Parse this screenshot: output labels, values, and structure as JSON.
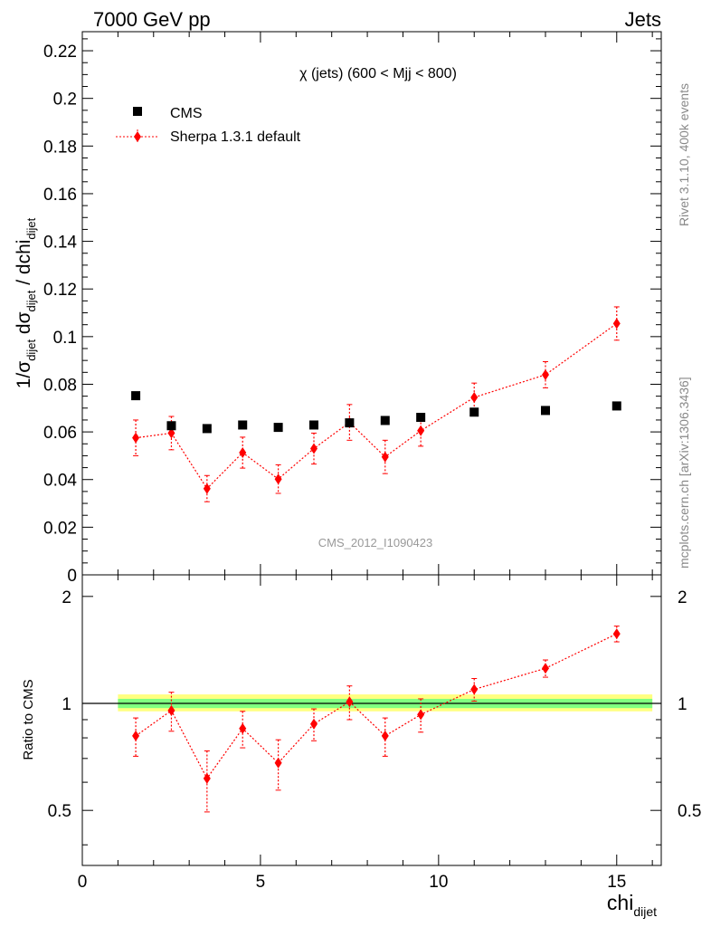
{
  "header": {
    "left": "7000 GeV pp",
    "right": "Jets"
  },
  "side_labels": {
    "top": "Rivet 3.1.10,  400k events",
    "bottom": "mcplots.cern.ch [arXiv:1306.3436]"
  },
  "watermark": "CMS_2012_I1090423",
  "colors": {
    "mc": "#ff0000",
    "data": "#000000",
    "band_outer": "#ffff80",
    "band_inner": "#80ff80"
  },
  "chart_data": [
    {
      "type": "scatter",
      "title": "χ (jets) (600 < Mjj <  800)",
      "ylabel": "1/σdijet dσdijet / dchidijet",
      "xlabel": "chidijet",
      "xlim": [
        0,
        16.25
      ],
      "ylim": [
        0,
        0.228
      ],
      "yticks": [
        "0",
        "0.02",
        "0.04",
        "0.06",
        "0.08",
        "0.1",
        "0.12",
        "0.14",
        "0.16",
        "0.18",
        "0.2",
        "0.22"
      ],
      "legend": [
        "CMS",
        "Sherpa 1.3.1 default"
      ],
      "legend_position": "top-left",
      "series": [
        {
          "name": "CMS",
          "x": [
            1.5,
            2.5,
            3.5,
            4.5,
            5.5,
            6.5,
            7.5,
            8.5,
            9.5,
            11,
            13,
            15
          ],
          "y": [
            0.0752,
            0.0626,
            0.0614,
            0.0629,
            0.0619,
            0.0629,
            0.0638,
            0.0648,
            0.0661,
            0.0683,
            0.069,
            0.0709
          ]
        },
        {
          "name": "Sherpa 1.3.1 default",
          "x": [
            1.5,
            2.5,
            3.5,
            4.5,
            5.5,
            6.5,
            7.5,
            8.5,
            9.5,
            11,
            13,
            15
          ],
          "y": [
            0.0575,
            0.0595,
            0.0362,
            0.0513,
            0.0402,
            0.053,
            0.064,
            0.0495,
            0.0605,
            0.0745,
            0.084,
            0.1055
          ],
          "err": [
            0.0075,
            0.007,
            0.0055,
            0.0065,
            0.006,
            0.0065,
            0.0075,
            0.007,
            0.0065,
            0.006,
            0.0055,
            0.007
          ]
        }
      ]
    },
    {
      "type": "scatter",
      "title": "",
      "ylabel": "Ratio to CMS",
      "xlabel": "chidijet",
      "xlim": [
        0,
        16.25
      ],
      "ylim": [
        0.35,
        2.3
      ],
      "yticks": [
        "0.5",
        "1",
        "2"
      ],
      "xticks": [
        "0",
        "5",
        "10",
        "15"
      ],
      "reference_line": 1,
      "band_range_x": [
        1,
        16
      ],
      "band_inner": [
        0.97,
        1.03
      ],
      "band_outer": [
        0.95,
        1.06
      ],
      "series": [
        {
          "name": "Sherpa 1.3.1 default",
          "x": [
            1.5,
            2.5,
            3.5,
            4.5,
            5.5,
            6.5,
            7.5,
            8.5,
            9.5,
            11,
            13,
            15
          ],
          "y": [
            0.81,
            0.955,
            0.615,
            0.85,
            0.68,
            0.875,
            1.01,
            0.81,
            0.93,
            1.095,
            1.255,
            1.57
          ],
          "err": [
            0.1,
            0.12,
            0.12,
            0.1,
            0.11,
            0.09,
            0.11,
            0.1,
            0.1,
            0.08,
            0.07,
            0.08
          ]
        }
      ]
    }
  ]
}
